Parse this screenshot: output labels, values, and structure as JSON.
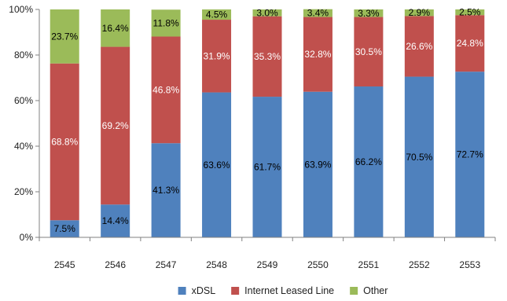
{
  "chart_data": {
    "type": "bar",
    "stacked": true,
    "percent": true,
    "categories": [
      "2545",
      "2546",
      "2547",
      "2548",
      "2549",
      "2550",
      "2551",
      "2552",
      "2553"
    ],
    "series": [
      {
        "name": "xDSL",
        "color": "#4f81bd",
        "label_color": "#000000",
        "values": [
          7.5,
          14.4,
          41.3,
          63.6,
          61.7,
          63.9,
          66.2,
          70.5,
          72.7
        ],
        "labels": [
          "7.5%",
          "14.4%",
          "41.3%",
          "63.6%",
          "61.7%",
          "63.9%",
          "66.2%",
          "70.5%",
          "72.7%"
        ]
      },
      {
        "name": "Internet Leased Line",
        "color": "#c0504d",
        "label_color": "#ffffff",
        "values": [
          68.8,
          69.2,
          46.8,
          31.9,
          35.3,
          32.8,
          30.5,
          26.6,
          24.8
        ],
        "labels": [
          "68.8%",
          "69.2%",
          "46.8%",
          "31.9%",
          "35.3%",
          "32.8%",
          "30.5%",
          "26.6%",
          "24.8%"
        ]
      },
      {
        "name": "Other",
        "color": "#9bbb59",
        "label_color": "#000000",
        "values": [
          23.7,
          16.4,
          11.8,
          4.5,
          3.0,
          3.4,
          3.3,
          2.9,
          2.5
        ],
        "labels": [
          "23.7%",
          "16.4%",
          "11.8%",
          "4.5%",
          "3.0%",
          "3.4%",
          "3.3%",
          "2.9%",
          "2.5%"
        ]
      }
    ],
    "y_ticks": [
      "0%",
      "20%",
      "40%",
      "60%",
      "80%",
      "100%"
    ],
    "ylim": [
      0,
      100
    ],
    "grid": false,
    "legend_position": "bottom"
  }
}
